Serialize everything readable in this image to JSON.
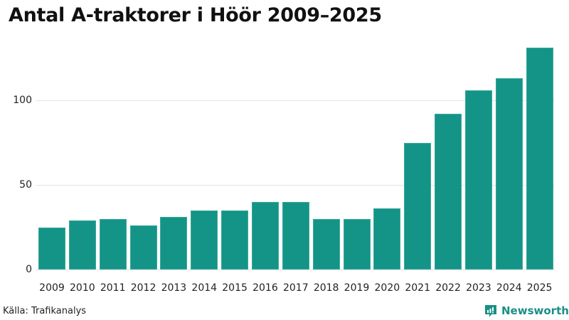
{
  "title": "Antal A-traktorer i Höör 2009–2025",
  "source": "Källa: Trafikanalys",
  "brand": {
    "name": "Newsworthy",
    "color": "#1a8f86"
  },
  "colors": {
    "bar": "#139486",
    "grid": "#e2e2ea"
  },
  "yaxis": {
    "ticks": [
      "0",
      "50",
      "100"
    ]
  },
  "chart_data": {
    "type": "bar",
    "title": "Antal A-traktorer i Höör 2009–2025",
    "xlabel": "",
    "ylabel": "",
    "categories": [
      "2009",
      "2010",
      "2011",
      "2012",
      "2013",
      "2014",
      "2015",
      "2016",
      "2017",
      "2018",
      "2019",
      "2020",
      "2021",
      "2022",
      "2023",
      "2024",
      "2025"
    ],
    "values": [
      25,
      29,
      30,
      26,
      31,
      35,
      35,
      40,
      40,
      30,
      30,
      36,
      75,
      92,
      106,
      113,
      131
    ],
    "ylim": [
      0,
      135
    ],
    "yticks": [
      0,
      50,
      100
    ],
    "grid": true,
    "legend": null,
    "source": "Källa: Trafikanalys"
  }
}
